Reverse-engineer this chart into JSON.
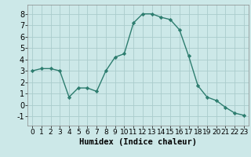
{
  "x": [
    0,
    1,
    2,
    3,
    4,
    5,
    6,
    7,
    8,
    9,
    10,
    11,
    12,
    13,
    14,
    15,
    16,
    17,
    18,
    19,
    20,
    21,
    22,
    23
  ],
  "y": [
    3.0,
    3.2,
    3.2,
    3.0,
    0.7,
    1.5,
    1.5,
    1.2,
    3.0,
    4.2,
    4.5,
    7.2,
    8.0,
    8.0,
    7.7,
    7.5,
    6.6,
    4.3,
    1.7,
    0.7,
    0.4,
    -0.2,
    -0.7,
    -0.9
  ],
  "line_color": "#2d7d6f",
  "bg_color": "#cce8e8",
  "grid_color": "#aacccc",
  "xlabel": "Humidex (Indice chaleur)",
  "ylim": [
    -1.8,
    8.8
  ],
  "xlim": [
    -0.5,
    23.5
  ],
  "yticks": [
    -1,
    0,
    1,
    2,
    3,
    4,
    5,
    6,
    7,
    8
  ],
  "xticks": [
    0,
    1,
    2,
    3,
    4,
    5,
    6,
    7,
    8,
    9,
    10,
    11,
    12,
    13,
    14,
    15,
    16,
    17,
    18,
    19,
    20,
    21,
    22,
    23
  ],
  "marker": "D",
  "marker_size": 2.2,
  "line_width": 1.0,
  "xlabel_fontsize": 7.5,
  "tick_fontsize": 6.5,
  "ytick_fontsize": 7.0
}
